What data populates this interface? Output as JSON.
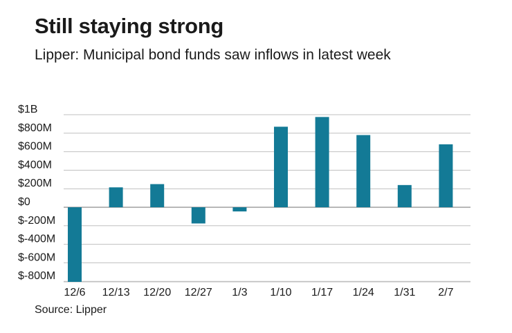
{
  "header": {
    "title": "Still staying strong",
    "subtitle": "Lipper: Municipal bond funds saw inflows in latest week"
  },
  "footer": {
    "source": "Source: Lipper"
  },
  "colors": {
    "bar": "#137a96",
    "grid": "#bfbfbf",
    "text": "#1a1a1a"
  },
  "chart_data": {
    "type": "bar",
    "title": "Still staying strong",
    "subtitle": "Lipper: Municipal bond funds saw inflows in latest week",
    "xlabel": "",
    "ylabel": "",
    "categories": [
      "12/6",
      "12/13",
      "12/20",
      "12/27",
      "1/3",
      "1/10",
      "1/17",
      "1/24",
      "1/31",
      "2/7"
    ],
    "values": [
      -830,
      215,
      250,
      -175,
      -45,
      870,
      975,
      780,
      240,
      680
    ],
    "units": "millions of dollars",
    "ylim": [
      -800,
      1000
    ],
    "yticks": [
      1000,
      800,
      600,
      400,
      200,
      0,
      -200,
      -400,
      -600,
      -800
    ],
    "ytick_labels": [
      "$1B",
      "$800M",
      "$600M",
      "$400M",
      "$200M",
      "$0",
      "$-200M",
      "$-400M",
      "$-600M",
      "$-800M"
    ],
    "grid": true,
    "legend": "none"
  }
}
